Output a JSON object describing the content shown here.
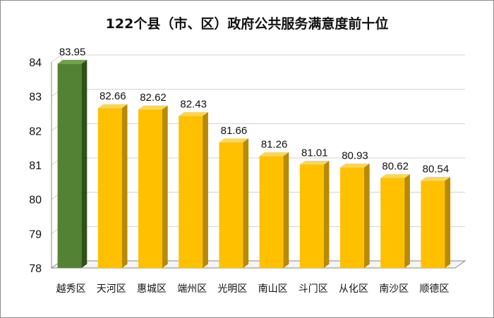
{
  "chart_data": {
    "type": "bar",
    "title": "122个县（市、区）政府公共服务满意度前十位",
    "categories": [
      "越秀区",
      "天河区",
      "惠城区",
      "端州区",
      "光明区",
      "南山区",
      "斗门区",
      "从化区",
      "南沙区",
      "顺德区"
    ],
    "values": [
      83.95,
      82.66,
      82.62,
      82.43,
      81.66,
      81.26,
      81.01,
      80.93,
      80.62,
      80.54
    ],
    "value_labels": [
      "83.95",
      "82.66",
      "82.62",
      "82.43",
      "81.66",
      "81.26",
      "81.01",
      "80.93",
      "80.62",
      "80.54"
    ],
    "ylim": [
      78,
      84
    ],
    "yticks": [
      "78",
      "79",
      "80",
      "81",
      "82",
      "83",
      "84"
    ],
    "grid": true,
    "legend": "none",
    "bar_style": "3d",
    "colors": {
      "highlight_front": "#548235",
      "highlight_side": "#2f5117",
      "highlight_top": "#70a347",
      "bar_front": "#ffc000",
      "bar_side": "#b88a00",
      "bar_top": "#ffd54f",
      "grid": "#d0d0d0",
      "axis": "#888888"
    }
  }
}
